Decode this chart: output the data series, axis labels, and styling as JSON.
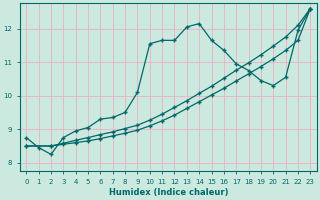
{
  "xlabel": "Humidex (Indice chaleur)",
  "bg_color": "#cce9e0",
  "grid_color": "#e8b8c8",
  "line_color": "#006868",
  "xlim": [
    -0.5,
    23.5
  ],
  "ylim": [
    7.75,
    12.75
  ],
  "xticks": [
    0,
    1,
    2,
    3,
    4,
    5,
    6,
    7,
    8,
    9,
    10,
    11,
    12,
    13,
    14,
    15,
    16,
    17,
    18,
    19,
    20,
    21,
    22,
    23
  ],
  "yticks": [
    8,
    9,
    10,
    11,
    12
  ],
  "line1_x": [
    0,
    1,
    2,
    3,
    4,
    5,
    6,
    7,
    8,
    9,
    10,
    11,
    12,
    13,
    14,
    15,
    16,
    17,
    18,
    19,
    20,
    21,
    22,
    23
  ],
  "line1_y": [
    8.75,
    8.45,
    8.25,
    8.75,
    8.95,
    9.05,
    9.3,
    9.35,
    9.5,
    10.1,
    11.55,
    11.65,
    11.65,
    12.05,
    12.15,
    11.65,
    11.35,
    10.95,
    10.75,
    10.45,
    10.3,
    10.55,
    11.95,
    12.6
  ],
  "line2_x": [
    0,
    2,
    3,
    4,
    5,
    6,
    7,
    8,
    9,
    10,
    11,
    12,
    13,
    14,
    15,
    16,
    17,
    18,
    19,
    20,
    21,
    22,
    23
  ],
  "line2_y": [
    8.5,
    8.5,
    8.55,
    8.6,
    8.65,
    8.72,
    8.8,
    8.88,
    8.97,
    9.1,
    9.25,
    9.42,
    9.62,
    9.82,
    10.02,
    10.22,
    10.44,
    10.65,
    10.87,
    11.1,
    11.35,
    11.65,
    12.6
  ],
  "line3_x": [
    0,
    2,
    3,
    4,
    5,
    6,
    7,
    8,
    9,
    10,
    11,
    12,
    13,
    14,
    15,
    16,
    17,
    18,
    19,
    20,
    21,
    22,
    23
  ],
  "line3_y": [
    8.5,
    8.5,
    8.58,
    8.67,
    8.75,
    8.84,
    8.92,
    9.02,
    9.12,
    9.27,
    9.45,
    9.65,
    9.85,
    10.07,
    10.28,
    10.52,
    10.76,
    10.98,
    11.22,
    11.48,
    11.75,
    12.1,
    12.6
  ]
}
